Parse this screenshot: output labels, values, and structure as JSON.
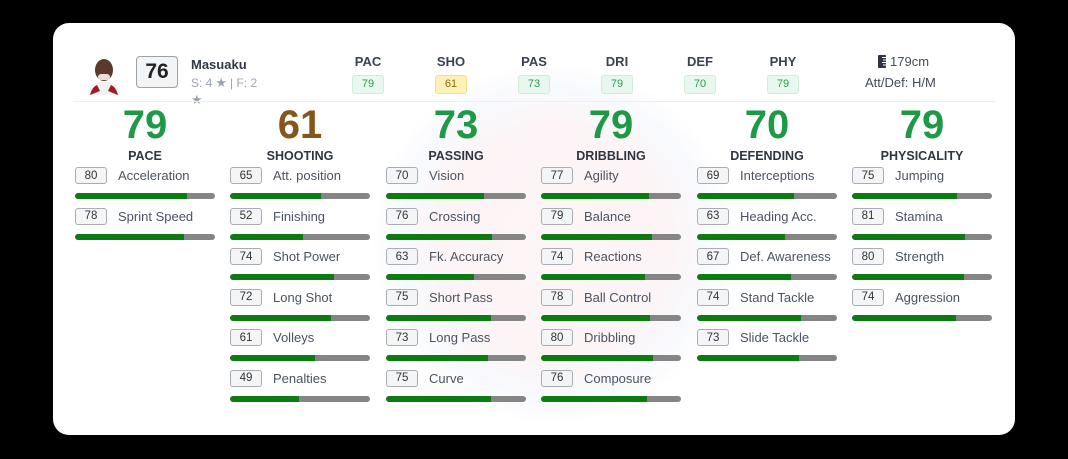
{
  "player": {
    "name": "Masuaku",
    "overall": "76",
    "skills_feet": "S: 4",
    "skills_sep_feet": "| F: 2",
    "height": "179cm",
    "work_rate": "Att/Def: H/M"
  },
  "summary": [
    {
      "label": "PAC",
      "value": "79",
      "color": "green"
    },
    {
      "label": "SHO",
      "value": "61",
      "color": "yellow"
    },
    {
      "label": "PAS",
      "value": "73",
      "color": "green"
    },
    {
      "label": "DRI",
      "value": "79",
      "color": "green"
    },
    {
      "label": "DEF",
      "value": "70",
      "color": "green"
    },
    {
      "label": "PHY",
      "value": "79",
      "color": "green"
    }
  ],
  "categories": [
    {
      "value": "79",
      "name": "PACE",
      "color": "#1e9a46",
      "stats": [
        {
          "v": 80,
          "n": "Acceleration"
        },
        {
          "v": 78,
          "n": "Sprint Speed"
        }
      ]
    },
    {
      "value": "61",
      "name": "SHOOTING",
      "color": "#85561a",
      "stats": [
        {
          "v": 65,
          "n": "Att. position"
        },
        {
          "v": 52,
          "n": "Finishing"
        },
        {
          "v": 74,
          "n": "Shot Power"
        },
        {
          "v": 72,
          "n": "Long Shot"
        },
        {
          "v": 61,
          "n": "Volleys"
        },
        {
          "v": 49,
          "n": "Penalties"
        }
      ]
    },
    {
      "value": "73",
      "name": "PASSING",
      "color": "#1e9a46",
      "stats": [
        {
          "v": 70,
          "n": "Vision"
        },
        {
          "v": 76,
          "n": "Crossing"
        },
        {
          "v": 63,
          "n": "Fk. Accuracy"
        },
        {
          "v": 75,
          "n": "Short Pass"
        },
        {
          "v": 73,
          "n": "Long Pass"
        },
        {
          "v": 75,
          "n": "Curve"
        }
      ]
    },
    {
      "value": "79",
      "name": "DRIBBLING",
      "color": "#1e9a46",
      "stats": [
        {
          "v": 77,
          "n": "Agility"
        },
        {
          "v": 79,
          "n": "Balance"
        },
        {
          "v": 74,
          "n": "Reactions"
        },
        {
          "v": 78,
          "n": "Ball Control"
        },
        {
          "v": 80,
          "n": "Dribbling"
        },
        {
          "v": 76,
          "n": "Composure"
        }
      ]
    },
    {
      "value": "70",
      "name": "DEFENDING",
      "color": "#1e9a46",
      "stats": [
        {
          "v": 69,
          "n": "Interceptions"
        },
        {
          "v": 63,
          "n": "Heading Acc."
        },
        {
          "v": 67,
          "n": "Def. Awareness"
        },
        {
          "v": 74,
          "n": "Stand Tackle"
        },
        {
          "v": 73,
          "n": "Slide Tackle"
        }
      ]
    },
    {
      "value": "79",
      "name": "PHYSICALITY",
      "color": "#1e9a46",
      "stats": [
        {
          "v": 75,
          "n": "Jumping"
        },
        {
          "v": 81,
          "n": "Stamina"
        },
        {
          "v": 80,
          "n": "Strength"
        },
        {
          "v": 74,
          "n": "Aggression"
        }
      ]
    }
  ],
  "icons": {
    "star": "★",
    "height": "ruler-icon"
  }
}
